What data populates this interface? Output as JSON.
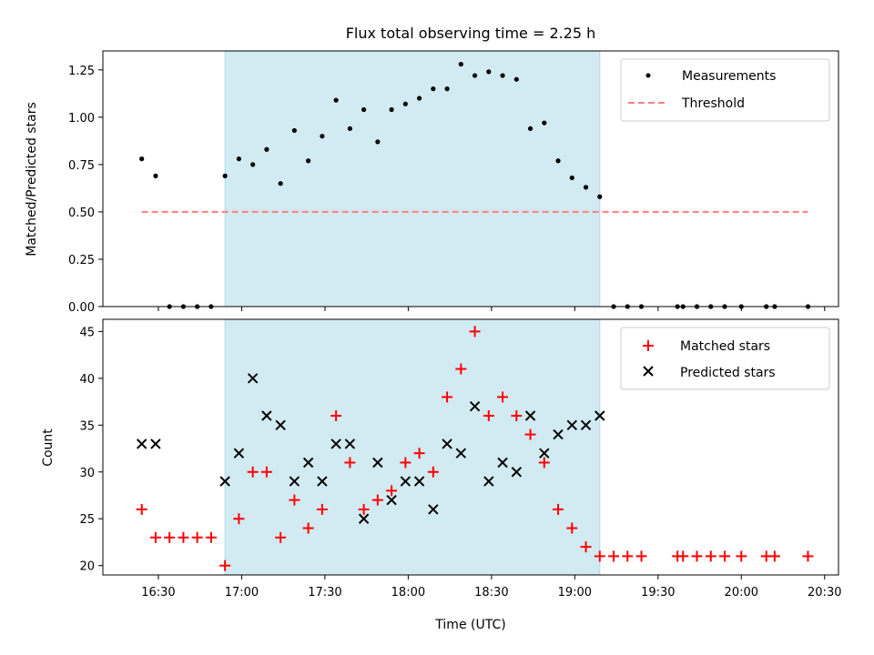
{
  "colors": {
    "shade": "#add8e6",
    "measurement": "#000000",
    "threshold": "#ff7f7f",
    "matched": "#ff0000",
    "predicted": "#000000"
  },
  "chart_data": [
    {
      "type": "scatter",
      "title": "Flux total observing time = 2.25 h",
      "ylabel": "Matched/Predicted stars",
      "xlabel": "",
      "x_unit": "time (UTC)",
      "xlim": [
        "16:10",
        "20:35"
      ],
      "ylim": [
        0,
        1.35
      ],
      "yticks": [
        "0.00",
        "0.25",
        "0.50",
        "0.75",
        "1.00",
        "1.25"
      ],
      "shaded_region": [
        "16:54",
        "19:09"
      ],
      "legend_position": "top-right",
      "series": [
        {
          "name": "Measurements",
          "marker": "dot",
          "points": [
            [
              "16:24",
              0.78
            ],
            [
              "16:29",
              0.69
            ],
            [
              "16:34",
              0.0
            ],
            [
              "16:39",
              0.0
            ],
            [
              "16:44",
              0.0
            ],
            [
              "16:49",
              0.0
            ],
            [
              "16:54",
              0.69
            ],
            [
              "16:59",
              0.78
            ],
            [
              "17:04",
              0.75
            ],
            [
              "17:09",
              0.83
            ],
            [
              "17:14",
              0.65
            ],
            [
              "17:19",
              0.93
            ],
            [
              "17:24",
              0.77
            ],
            [
              "17:29",
              0.9
            ],
            [
              "17:34",
              1.09
            ],
            [
              "17:39",
              0.94
            ],
            [
              "17:44",
              1.04
            ],
            [
              "17:49",
              0.87
            ],
            [
              "17:54",
              1.04
            ],
            [
              "17:59",
              1.07
            ],
            [
              "18:04",
              1.1
            ],
            [
              "18:09",
              1.15
            ],
            [
              "18:14",
              1.15
            ],
            [
              "18:19",
              1.28
            ],
            [
              "18:24",
              1.22
            ],
            [
              "18:29",
              1.24
            ],
            [
              "18:34",
              1.22
            ],
            [
              "18:39",
              1.2
            ],
            [
              "18:44",
              0.94
            ],
            [
              "18:49",
              0.97
            ],
            [
              "18:54",
              0.77
            ],
            [
              "18:59",
              0.68
            ],
            [
              "19:04",
              0.63
            ],
            [
              "19:09",
              0.58
            ],
            [
              "19:14",
              0.0
            ],
            [
              "19:19",
              0.0
            ],
            [
              "19:24",
              0.0
            ],
            [
              "19:37",
              0.0
            ],
            [
              "19:39",
              0.0
            ],
            [
              "19:44",
              0.0
            ],
            [
              "19:49",
              0.0
            ],
            [
              "19:54",
              0.0
            ],
            [
              "20:00",
              0.0
            ],
            [
              "20:09",
              0.0
            ],
            [
              "20:12",
              0.0
            ],
            [
              "20:24",
              0.0
            ]
          ]
        },
        {
          "name": "Threshold",
          "marker": "dashed-line",
          "points": [
            [
              "16:24",
              0.5
            ],
            [
              "20:24",
              0.5
            ]
          ]
        }
      ]
    },
    {
      "type": "scatter",
      "title": "",
      "ylabel": "Count",
      "xlabel": "Time (UTC)",
      "x_unit": "time (UTC)",
      "xlim": [
        "16:10",
        "20:35"
      ],
      "ylim": [
        19,
        46.3
      ],
      "yticks": [
        "20",
        "25",
        "30",
        "35",
        "40",
        "45"
      ],
      "xticks": [
        "16:30",
        "17:00",
        "17:30",
        "18:00",
        "18:30",
        "19:00",
        "19:30",
        "20:00",
        "20:30"
      ],
      "shaded_region": [
        "16:54",
        "19:09"
      ],
      "legend_position": "top-right",
      "series": [
        {
          "name": "Matched stars",
          "marker": "plus",
          "points": [
            [
              "16:24",
              26
            ],
            [
              "16:29",
              23
            ],
            [
              "16:34",
              23
            ],
            [
              "16:39",
              23
            ],
            [
              "16:44",
              23
            ],
            [
              "16:49",
              23
            ],
            [
              "16:54",
              20
            ],
            [
              "16:59",
              25
            ],
            [
              "17:04",
              30
            ],
            [
              "17:09",
              30
            ],
            [
              "17:14",
              23
            ],
            [
              "17:19",
              27
            ],
            [
              "17:24",
              24
            ],
            [
              "17:29",
              26
            ],
            [
              "17:34",
              36
            ],
            [
              "17:39",
              31
            ],
            [
              "17:44",
              26
            ],
            [
              "17:49",
              27
            ],
            [
              "17:54",
              28
            ],
            [
              "17:59",
              31
            ],
            [
              "18:04",
              32
            ],
            [
              "18:09",
              30
            ],
            [
              "18:14",
              38
            ],
            [
              "18:19",
              41
            ],
            [
              "18:24",
              45
            ],
            [
              "18:29",
              36
            ],
            [
              "18:34",
              38
            ],
            [
              "18:39",
              36
            ],
            [
              "18:44",
              34
            ],
            [
              "18:49",
              31
            ],
            [
              "18:54",
              26
            ],
            [
              "18:59",
              24
            ],
            [
              "19:04",
              22
            ],
            [
              "19:09",
              21
            ],
            [
              "19:14",
              21
            ],
            [
              "19:19",
              21
            ],
            [
              "19:24",
              21
            ],
            [
              "19:37",
              21
            ],
            [
              "19:39",
              21
            ],
            [
              "19:44",
              21
            ],
            [
              "19:49",
              21
            ],
            [
              "19:54",
              21
            ],
            [
              "20:00",
              21
            ],
            [
              "20:09",
              21
            ],
            [
              "20:12",
              21
            ],
            [
              "20:24",
              21
            ]
          ]
        },
        {
          "name": "Predicted stars",
          "marker": "x",
          "points": [
            [
              "16:24",
              33
            ],
            [
              "16:29",
              33
            ],
            [
              "16:54",
              29
            ],
            [
              "16:59",
              32
            ],
            [
              "17:04",
              40
            ],
            [
              "17:09",
              36
            ],
            [
              "17:14",
              35
            ],
            [
              "17:19",
              29
            ],
            [
              "17:24",
              31
            ],
            [
              "17:29",
              29
            ],
            [
              "17:34",
              33
            ],
            [
              "17:39",
              33
            ],
            [
              "17:44",
              25
            ],
            [
              "17:49",
              31
            ],
            [
              "17:54",
              27
            ],
            [
              "17:59",
              29
            ],
            [
              "18:04",
              29
            ],
            [
              "18:09",
              26
            ],
            [
              "18:14",
              33
            ],
            [
              "18:19",
              32
            ],
            [
              "18:24",
              37
            ],
            [
              "18:29",
              29
            ],
            [
              "18:34",
              31
            ],
            [
              "18:39",
              30
            ],
            [
              "18:44",
              36
            ],
            [
              "18:49",
              32
            ],
            [
              "18:54",
              34
            ],
            [
              "18:59",
              35
            ],
            [
              "19:04",
              35
            ],
            [
              "19:09",
              36
            ]
          ]
        }
      ]
    }
  ]
}
